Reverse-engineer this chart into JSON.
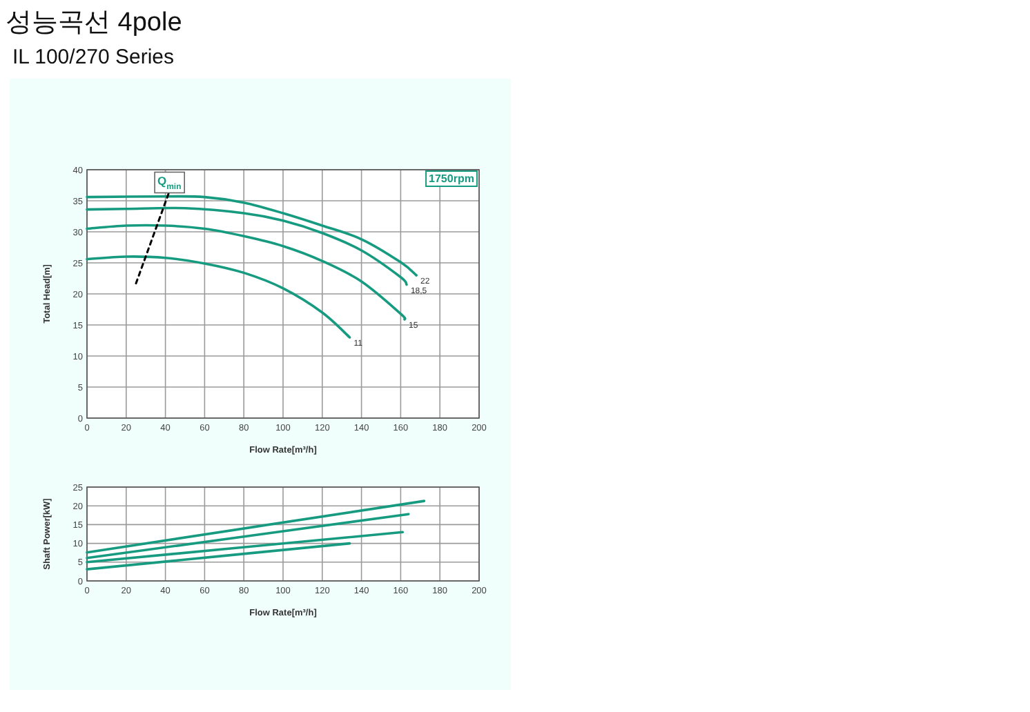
{
  "chart_data": [
    {
      "type": "line",
      "title": "성능곡선 4pole",
      "subtitle": "IL 100/270 Series",
      "xlabel": "Flow Rate[m³/h]",
      "ylabel": "Total Head[m]",
      "xlim": [
        0,
        200
      ],
      "ylim": [
        0,
        40
      ],
      "xticks": [
        0,
        20,
        40,
        60,
        80,
        100,
        120,
        140,
        160,
        180,
        200
      ],
      "yticks": [
        0,
        5,
        10,
        15,
        20,
        25,
        30,
        35,
        40
      ],
      "grid": true,
      "marker": "none",
      "line_style": "solid",
      "annotations": [
        "1750rpm",
        {
          "text": "Q$_{min}$",
          "x": 42,
          "y": 36.5
        }
      ],
      "series": [
        {
          "name": "22",
          "color": "#179b80",
          "x": [
            0,
            40,
            60,
            80,
            100,
            120,
            140,
            160,
            168
          ],
          "values": [
            35.6,
            35.7,
            35.6,
            34.7,
            33.0,
            31.0,
            28.8,
            25.1,
            23.0
          ]
        },
        {
          "name": "18,5",
          "color": "#179b80",
          "x": [
            0,
            20,
            50,
            80,
            100,
            120,
            140,
            160,
            163
          ],
          "values": [
            33.6,
            33.7,
            33.8,
            33.0,
            31.8,
            29.8,
            27.0,
            22.7,
            21.5
          ]
        },
        {
          "name": "15",
          "color": "#179b80",
          "x": [
            0,
            20,
            40,
            60,
            80,
            100,
            120,
            140,
            160,
            162
          ],
          "values": [
            30.5,
            31.0,
            31.0,
            30.5,
            29.3,
            27.7,
            25.3,
            22.0,
            16.8,
            15.9
          ]
        },
        {
          "name": "11",
          "color": "#179b80",
          "x": [
            0,
            20,
            40,
            60,
            80,
            100,
            120,
            134
          ],
          "values": [
            25.6,
            26.0,
            25.8,
            24.9,
            23.4,
            20.9,
            17.0,
            13.0
          ]
        },
        {
          "type": "line",
          "line_style": "dashed",
          "color": "#000000",
          "x": [
            25,
            42
          ],
          "values": [
            21.7,
            36.5
          ]
        }
      ]
    },
    {
      "type": "line",
      "xlabel": "Flow Rate[m³/h]",
      "ylabel": "Shaft Power[kW]",
      "xlim": [
        0,
        200
      ],
      "ylim": [
        0,
        25
      ],
      "xticks": [
        0,
        20,
        40,
        60,
        80,
        100,
        120,
        140,
        160,
        180,
        200
      ],
      "yticks": [
        0,
        5,
        10,
        15,
        20,
        25
      ],
      "grid": true,
      "marker": "none",
      "line_style": "solid",
      "series": [
        {
          "color": "#179b80",
          "x": [
            0,
            172
          ],
          "values": [
            7.6,
            21.3
          ]
        },
        {
          "color": "#179b80",
          "x": [
            0,
            164
          ],
          "values": [
            6.1,
            17.8
          ]
        },
        {
          "color": "#179b80",
          "x": [
            0,
            161
          ],
          "values": [
            5.0,
            13.0
          ]
        },
        {
          "color": "#179b80",
          "x": [
            0,
            134
          ],
          "values": [
            3.1,
            10.0
          ]
        }
      ]
    }
  ]
}
